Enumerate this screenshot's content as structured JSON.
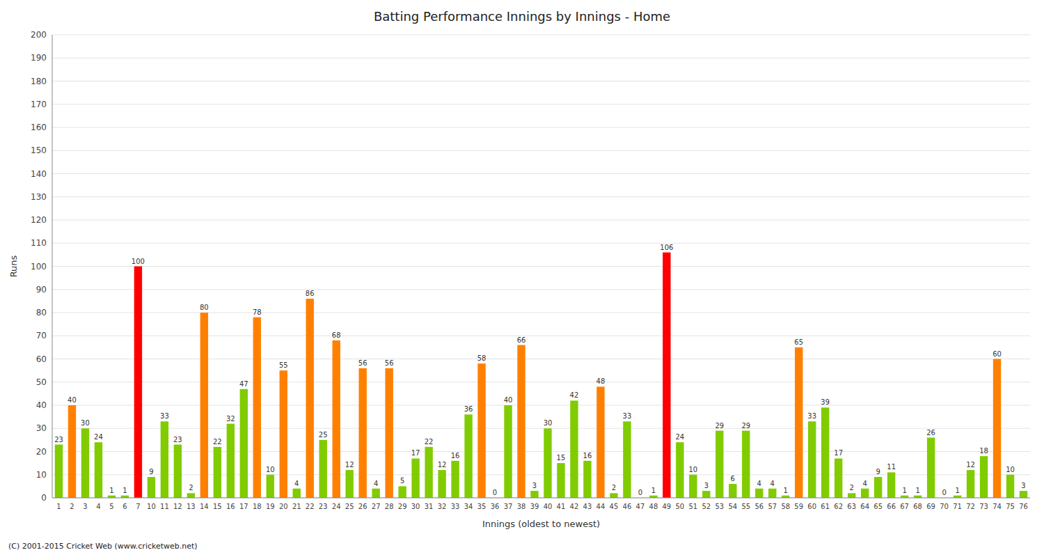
{
  "chart_data": {
    "type": "bar",
    "title": "Batting Performance Innings by Innings - Home",
    "xlabel": "Innings (oldest to newest)",
    "ylabel": "Runs",
    "footer": "(C) 2001-2015 Cricket Web (www.cricketweb.net)",
    "categories": [
      "1",
      "2",
      "3",
      "4",
      "5",
      "6",
      "7",
      "10",
      "11",
      "12",
      "13",
      "14",
      "15",
      "16",
      "17",
      "18",
      "19",
      "20",
      "21",
      "22",
      "23",
      "24",
      "25",
      "26",
      "27",
      "28",
      "29",
      "30",
      "31",
      "32",
      "33",
      "34",
      "35",
      "36",
      "37",
      "38",
      "39",
      "40",
      "41",
      "42",
      "43",
      "44",
      "45",
      "46",
      "47",
      "48",
      "49",
      "50",
      "51",
      "52",
      "53",
      "54",
      "55",
      "56",
      "57",
      "58",
      "59",
      "60",
      "61",
      "62",
      "63",
      "64",
      "65",
      "66",
      "67",
      "68",
      "69",
      "70",
      "71",
      "72",
      "73",
      "74",
      "75",
      "76"
    ],
    "values": [
      23,
      40,
      30,
      24,
      1,
      1,
      100,
      9,
      33,
      23,
      2,
      80,
      22,
      32,
      47,
      78,
      10,
      55,
      4,
      86,
      25,
      68,
      12,
      56,
      4,
      56,
      5,
      17,
      22,
      12,
      16,
      36,
      58,
      0,
      40,
      66,
      3,
      30,
      15,
      42,
      16,
      48,
      2,
      33,
      0,
      1,
      106,
      24,
      10,
      3,
      29,
      6,
      29,
      4,
      4,
      1,
      65,
      33,
      39,
      17,
      2,
      4,
      9,
      11,
      1,
      1,
      26,
      0,
      1,
      12,
      18,
      60,
      10,
      3
    ],
    "colors": [
      "#80cc00",
      "#ff8000",
      "#80cc00",
      "#80cc00",
      "#80cc00",
      "#80cc00",
      "#ff0000",
      "#80cc00",
      "#80cc00",
      "#80cc00",
      "#80cc00",
      "#ff8000",
      "#80cc00",
      "#80cc00",
      "#80cc00",
      "#ff8000",
      "#80cc00",
      "#ff8000",
      "#80cc00",
      "#ff8000",
      "#80cc00",
      "#ff8000",
      "#80cc00",
      "#ff8000",
      "#80cc00",
      "#ff8000",
      "#80cc00",
      "#80cc00",
      "#80cc00",
      "#80cc00",
      "#80cc00",
      "#80cc00",
      "#ff8000",
      "#80cc00",
      "#80cc00",
      "#ff8000",
      "#80cc00",
      "#80cc00",
      "#80cc00",
      "#80cc00",
      "#80cc00",
      "#ff8000",
      "#80cc00",
      "#80cc00",
      "#80cc00",
      "#80cc00",
      "#ff0000",
      "#80cc00",
      "#80cc00",
      "#80cc00",
      "#80cc00",
      "#80cc00",
      "#80cc00",
      "#80cc00",
      "#80cc00",
      "#80cc00",
      "#ff8000",
      "#80cc00",
      "#80cc00",
      "#80cc00",
      "#80cc00",
      "#80cc00",
      "#80cc00",
      "#80cc00",
      "#80cc00",
      "#80cc00",
      "#80cc00",
      "#80cc00",
      "#80cc00",
      "#80cc00",
      "#80cc00",
      "#ff8000",
      "#80cc00",
      "#80cc00"
    ],
    "ylim": [
      0,
      200
    ],
    "yticks": [
      0,
      10,
      20,
      30,
      40,
      50,
      60,
      70,
      80,
      90,
      100,
      110,
      120,
      130,
      140,
      150,
      160,
      170,
      180,
      190,
      200
    ],
    "grid": true,
    "data_labels": true
  }
}
